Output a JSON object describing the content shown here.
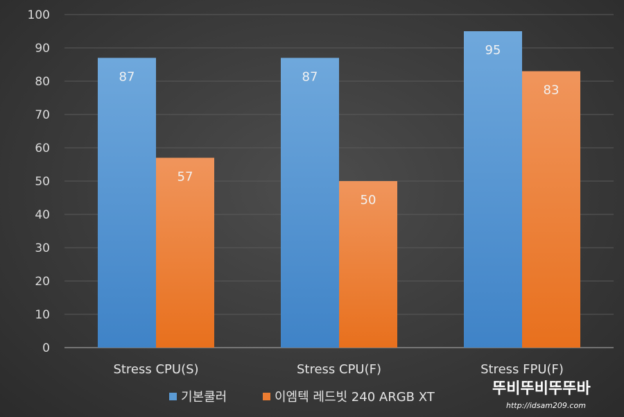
{
  "chart_data": {
    "type": "bar",
    "title": "",
    "xlabel": "",
    "ylabel": "",
    "ylim": [
      0,
      100
    ],
    "yticks": [
      0,
      10,
      20,
      30,
      40,
      50,
      60,
      70,
      80,
      90,
      100
    ],
    "grid": true,
    "legend_position": "bottom",
    "categories": [
      "Stress CPU(S)",
      "Stress CPU(F)",
      "Stress FPU(F)"
    ],
    "series": [
      {
        "name": "기본쿨러",
        "values": [
          87,
          87,
          95
        ],
        "color": "#5b9bd5",
        "color_top": "#6fa8dc",
        "color_bottom": "#3f83c7"
      },
      {
        "name": "이엠텍 레드빗 240 ARGB XT",
        "values": [
          57,
          50,
          83
        ],
        "color": "#ed7d31",
        "color_top": "#f0955c",
        "color_bottom": "#e8701d"
      }
    ]
  },
  "watermark": {
    "brand": "뚜비뚜비뚜뚜바",
    "url": "http://idsam209.com"
  }
}
